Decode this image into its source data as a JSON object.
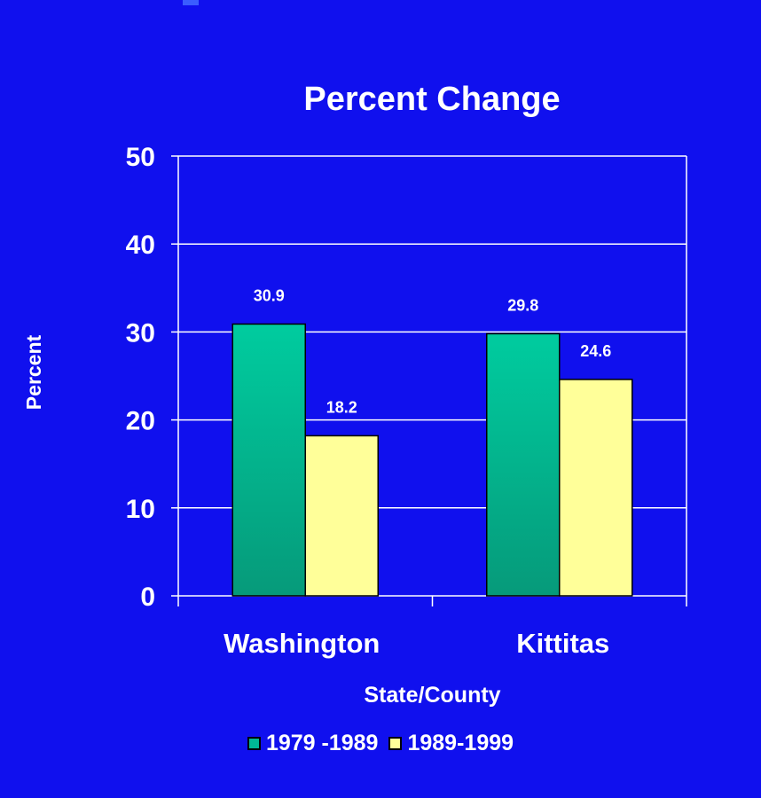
{
  "colors": {
    "background": "#1010EE",
    "series_1979_1989": "#00B894",
    "series_1989_1999": "#FFFF99",
    "text": "#FFFFFF",
    "gridline": "#FFFFFF"
  },
  "chart_data": {
    "type": "bar",
    "title": "Percent Change",
    "xlabel": "State/County",
    "ylabel": "Percent",
    "categories": [
      "Washington",
      "Kittitas"
    ],
    "series": [
      {
        "name": "1979 -1989",
        "values": [
          30.9,
          29.8
        ],
        "labels": [
          "30.9",
          "29.8"
        ]
      },
      {
        "name": "1989-1999",
        "values": [
          18.2,
          24.6
        ],
        "labels": [
          "18.2",
          "24.6"
        ]
      }
    ],
    "ylim": [
      0,
      50
    ],
    "yticks": [
      0,
      10,
      20,
      30,
      40,
      50
    ],
    "grid": true,
    "legend_position": "bottom"
  }
}
